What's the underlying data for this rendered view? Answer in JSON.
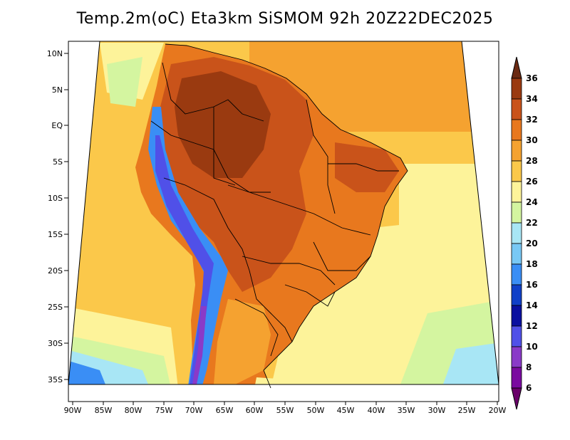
{
  "title": "Temp.2m(oC) Eta3km SiSMOM 92h 20Z22DEC2025",
  "lat_labels": [
    "10N",
    "5N",
    "EQ",
    "5S",
    "10S",
    "15S",
    "20S",
    "25S",
    "30S",
    "35S"
  ],
  "lon_labels": [
    "90W",
    "85W",
    "80W",
    "75W",
    "70W",
    "65W",
    "60W",
    "55W",
    "50W",
    "45W",
    "40W",
    "35W",
    "30W",
    "25W",
    "20W"
  ],
  "colorbar": {
    "labels": [
      "36",
      "34",
      "32",
      "30",
      "28",
      "26",
      "24",
      "22",
      "20",
      "18",
      "16",
      "14",
      "12",
      "10",
      "8",
      "6"
    ],
    "colors": [
      "#6b2a12",
      "#9a3a10",
      "#c9531a",
      "#e8781e",
      "#f5a230",
      "#fbc84a",
      "#fdf39a",
      "#d4f5a0",
      "#a8e6f5",
      "#78c8f5",
      "#3a8ef5",
      "#1040c8",
      "#0a10a0",
      "#5050e8",
      "#8a3ac8",
      "#7a0aa0",
      "#6a006a"
    ]
  },
  "legend_colors": {
    "ocean_warm": "#fbc84a",
    "ocean_hot": "#f5a230",
    "ocean_mild": "#fdf39a",
    "ocean_cool": "#d4f5a0",
    "ocean_cold": "#a8e6f5",
    "land_hot": "#c9531a",
    "land_very_hot": "#9a3a10",
    "land_warm": "#e8781e",
    "andes": "#3a8ef5",
    "andes_peak": "#5050e8",
    "border": "#000000"
  }
}
